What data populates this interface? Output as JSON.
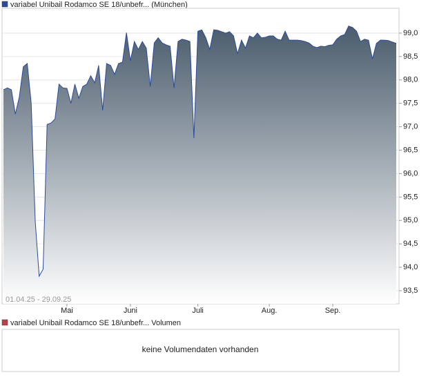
{
  "chart_data": {
    "type": "area",
    "date_range": "01.04.25 - 29.09.25",
    "categories": [
      null,
      null,
      null,
      null,
      null,
      null,
      null,
      null,
      null,
      null,
      null,
      null,
      null,
      null,
      null,
      null,
      "Mai",
      null,
      null,
      null,
      null,
      null,
      null,
      null,
      null,
      null,
      null,
      null,
      null,
      null,
      null,
      null,
      "Juni",
      null,
      null,
      null,
      null,
      null,
      null,
      null,
      null,
      null,
      null,
      null,
      null,
      null,
      null,
      null,
      null,
      "Juli",
      null,
      null,
      null,
      null,
      null,
      null,
      null,
      null,
      null,
      null,
      null,
      null,
      null,
      null,
      null,
      null,
      null,
      "Aug.",
      null,
      null,
      null,
      null,
      null,
      null,
      null,
      null,
      null,
      null,
      null,
      null,
      null,
      null,
      null,
      "Sep.",
      null,
      null,
      null,
      null,
      null,
      null,
      null,
      null,
      null,
      null,
      null,
      null,
      null,
      null,
      null,
      null
    ],
    "series": [
      {
        "name": "variabel Unibail Rodamco SE 18/unbefr... (München)",
        "color": "#2a4aa0",
        "values": [
          97.79,
          97.83,
          97.79,
          97.27,
          97.64,
          98.28,
          98.35,
          97.5,
          94.99,
          93.81,
          93.96,
          97.05,
          97.08,
          97.17,
          97.91,
          97.83,
          97.82,
          97.5,
          97.91,
          97.61,
          97.86,
          97.91,
          98.09,
          97.94,
          98.31,
          97.35,
          98.35,
          98.31,
          98.12,
          98.35,
          98.38,
          99.01,
          98.41,
          98.82,
          98.65,
          98.82,
          98.68,
          97.86,
          98.79,
          98.9,
          98.79,
          98.75,
          98.72,
          97.83,
          98.82,
          98.87,
          98.85,
          98.82,
          96.76,
          99.04,
          99.07,
          98.9,
          98.65,
          99.07,
          99.06,
          99.03,
          99.0,
          99.03,
          98.94,
          98.56,
          98.85,
          98.68,
          98.94,
          98.9,
          99.0,
          98.9,
          98.91,
          98.94,
          98.94,
          98.87,
          98.85,
          99.04,
          98.85,
          98.85,
          98.85,
          98.84,
          98.82,
          98.79,
          98.72,
          98.69,
          98.72,
          98.71,
          98.74,
          98.75,
          98.87,
          98.94,
          98.97,
          99.15,
          99.12,
          99.04,
          98.82,
          98.87,
          98.85,
          98.45,
          98.78,
          98.85,
          98.85,
          98.84,
          98.81,
          98.78
        ]
      }
    ],
    "ylim": [
      93.22,
      99.53
    ],
    "yticks": [
      {
        "value": 93.5,
        "label": "93,5"
      },
      {
        "value": 94.0,
        "label": "94,0"
      },
      {
        "value": 94.5,
        "label": "94,5"
      },
      {
        "value": 95.0,
        "label": "95,0"
      },
      {
        "value": 95.5,
        "label": "95,5"
      },
      {
        "value": 96.0,
        "label": "96,0"
      },
      {
        "value": 96.5,
        "label": "96,5"
      },
      {
        "value": 97.0,
        "label": "97,0"
      },
      {
        "value": 97.5,
        "label": "97,5"
      },
      {
        "value": 98.0,
        "label": "98,0"
      },
      {
        "value": 98.5,
        "label": "98,5"
      },
      {
        "value": 99.0,
        "label": "99,0"
      }
    ],
    "grid": true
  },
  "volume_panel": {
    "legend": "variabel Unibail Rodamco SE 18/unbefr... Volumen",
    "color": "#c0404a",
    "message": "keine Volumendaten vorhanden"
  }
}
